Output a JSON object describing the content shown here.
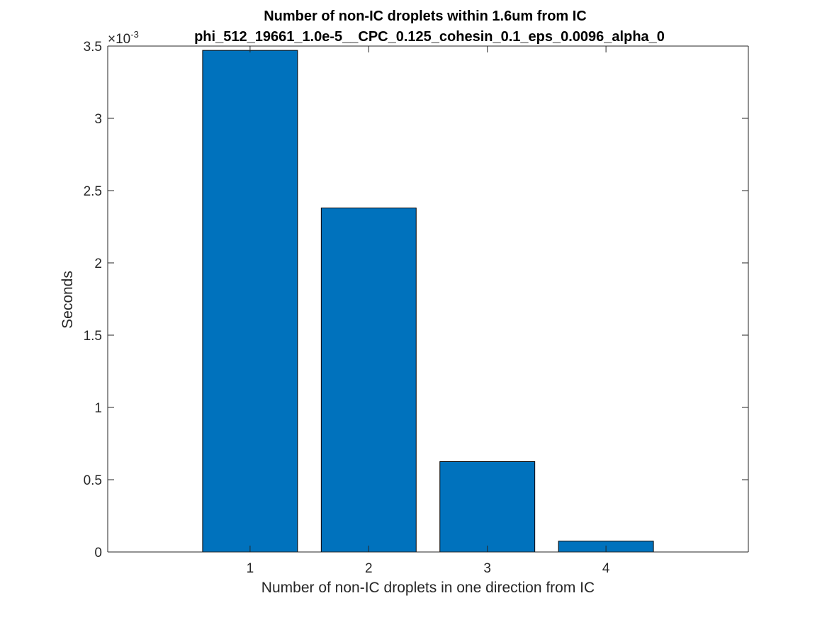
{
  "chart_data": {
    "type": "bar",
    "title": "Number of non-IC droplets within 1.6um from IC",
    "subtitle": "phi_512_19661_1.0e-5__CPC_0.125_cohesin_0.1_eps_0.0096_alpha_0",
    "xlabel": "Number of non-IC droplets in one direction from IC",
    "ylabel": "Seconds",
    "categories": [
      "1",
      "2",
      "3",
      "4"
    ],
    "x": [
      1,
      2,
      3,
      4
    ],
    "values": [
      0.00347,
      0.00238,
      0.000625,
      7.5e-05
    ],
    "xlim": [
      -0.2,
      5.2
    ],
    "ylim": [
      0,
      0.0035
    ],
    "yticks": [
      0,
      0.0005,
      0.001,
      0.0015,
      0.002,
      0.0025,
      0.003,
      0.0035
    ],
    "ytick_labels": [
      "0",
      "0.5",
      "1",
      "1.5",
      "2",
      "2.5",
      "3",
      "3.5"
    ],
    "y_multiplier": {
      "base": "×10",
      "exponent": "-3"
    },
    "bar_color": "#0072BD",
    "bar_edge_color": "#000000",
    "grid": false,
    "legend": "none",
    "box": true
  }
}
